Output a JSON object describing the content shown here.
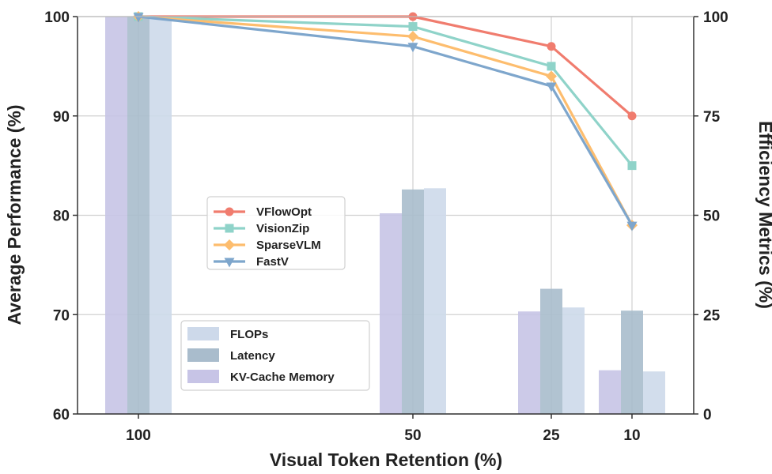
{
  "chart_data": {
    "type": "bar+line",
    "title": "",
    "xlabel": "Visual Token Retention (%)",
    "ylabel_left": "Average Performance (%)",
    "ylabel_right": "Efficiency Metrics (%)",
    "categories": [
      "100",
      "50",
      "25",
      "10"
    ],
    "ylim_left": [
      60,
      100
    ],
    "ylim_right": [
      0,
      100
    ],
    "yticks_left": [
      "60",
      "70",
      "80",
      "90",
      "100"
    ],
    "yticks_right": [
      "0",
      "25",
      "50",
      "75",
      "100"
    ],
    "grid": true,
    "bar_series": [
      {
        "name": "KV-Cache Memory",
        "color": "#c7c4e6",
        "values": [
          100,
          50.5,
          25.8,
          11
        ]
      },
      {
        "name": "Latency",
        "color": "#a9bccc",
        "values": [
          100,
          56.5,
          31.5,
          26
        ]
      },
      {
        "name": "FLOPs",
        "color": "#cdd9ea",
        "values": [
          100,
          56.8,
          26.8,
          10.7
        ]
      }
    ],
    "line_series": [
      {
        "name": "VFlowOpt",
        "color": "#f07c6e",
        "marker": "circle",
        "values": [
          100,
          100,
          97,
          90
        ]
      },
      {
        "name": "VisionZip",
        "color": "#8fd3c9",
        "marker": "square",
        "values": [
          100,
          99,
          95,
          85
        ]
      },
      {
        "name": "SparseVLM",
        "color": "#fdbd6e",
        "marker": "diamond",
        "values": [
          100,
          98,
          94,
          79
        ]
      },
      {
        "name": "FastV",
        "color": "#7ea6cc",
        "marker": "triangle-down",
        "values": [
          100,
          97,
          93,
          79
        ]
      }
    ],
    "line_legend_order": [
      "VFlowOpt",
      "VisionZip",
      "SparseVLM",
      "FastV"
    ],
    "bar_legend_order": [
      "FLOPs",
      "Latency",
      "KV-Cache Memory"
    ]
  }
}
